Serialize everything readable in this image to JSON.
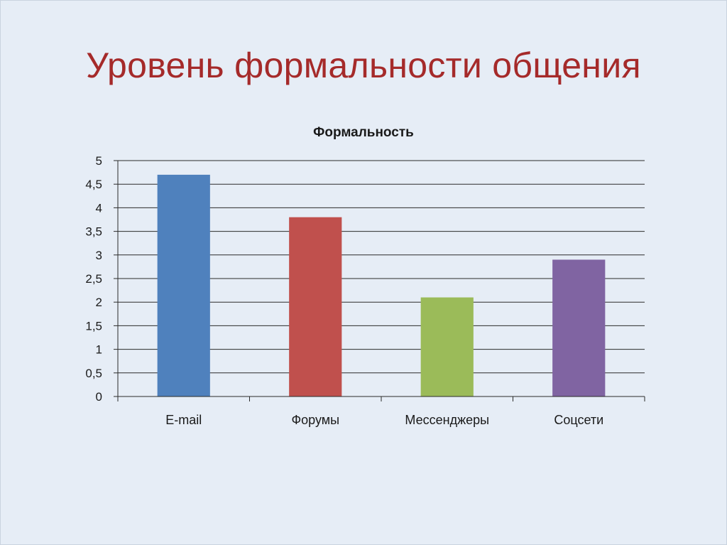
{
  "slide": {
    "title": "Уровень формальности общения"
  },
  "chart_data": {
    "type": "bar",
    "title": "Формальность",
    "xlabel": "",
    "ylabel": "",
    "categories": [
      "E-mail",
      "Форумы",
      "Мессенджеры",
      "Соцсети"
    ],
    "values": [
      4.7,
      3.8,
      2.1,
      2.9
    ],
    "ylim": [
      0,
      5
    ],
    "yticks": [
      0,
      0.5,
      1,
      1.5,
      2,
      2.5,
      3,
      3.5,
      4,
      4.5,
      5
    ],
    "ytick_labels": [
      "0",
      "0,5",
      "1",
      "1,5",
      "2",
      "2,5",
      "3",
      "3,5",
      "4",
      "4,5",
      "5"
    ],
    "colors": [
      "#4f81bd",
      "#c0504d",
      "#9bbb59",
      "#8064a2"
    ],
    "grid": true,
    "legend": "none"
  }
}
